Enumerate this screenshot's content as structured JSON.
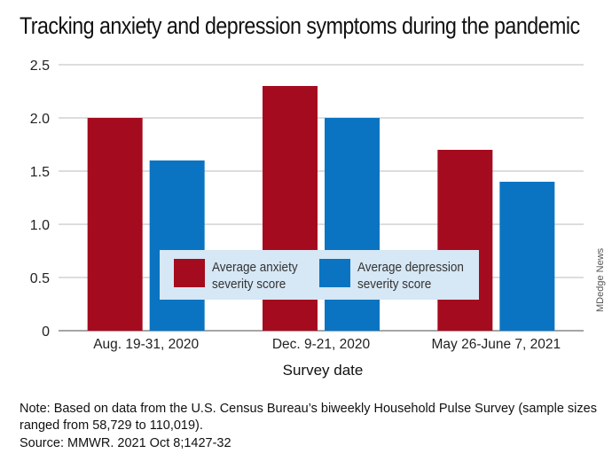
{
  "title": "Tracking anxiety and depression symptoms during the pandemic",
  "credit": "MDedge News",
  "note": {
    "label": "Note:",
    "text": " Based on data from the U.S. Census Bureau’s biweekly Household Pulse Survey (sample sizes ranged from 58,729 to 110,019)."
  },
  "source": {
    "label": "Source:",
    "text": " MMWR. 2021 Oct 8;1427-32"
  },
  "colors": {
    "anxiety": "#a50b1e",
    "depression": "#0a74c2",
    "grid": "#bbbbbb",
    "legend_bg": "#d6e7f5"
  },
  "chart_data": {
    "type": "bar",
    "title": "Tracking anxiety and depression symptoms during the pandemic",
    "xlabel": "Survey date",
    "ylabel": "",
    "categories": [
      "Aug. 19-31, 2020",
      "Dec. 9-21, 2020",
      "May 26-June 7, 2021"
    ],
    "series": [
      {
        "name": "Average anxiety severity score",
        "values": [
          2.0,
          2.3,
          1.7
        ]
      },
      {
        "name": "Average depression severity score",
        "values": [
          1.6,
          2.0,
          1.4
        ]
      }
    ],
    "ylim": [
      0,
      2.5
    ],
    "yticks": [
      "0",
      "0.5",
      "1.0",
      "1.5",
      "2.0",
      "2.5"
    ],
    "grid": true,
    "legend_position": "center"
  }
}
